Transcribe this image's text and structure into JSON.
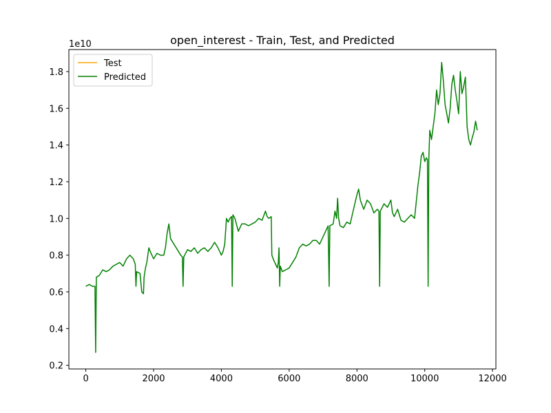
{
  "chart_data": {
    "type": "line",
    "title": "open_interest - Train, Test, and Predicted",
    "xlabel": "",
    "ylabel": "",
    "y_scale_label": "1e10",
    "xlim": [
      -500,
      12100
    ],
    "ylim": [
      0.18,
      1.92
    ],
    "x_ticks": [
      0,
      2000,
      4000,
      6000,
      8000,
      10000,
      12000
    ],
    "x_tick_labels": [
      "0",
      "2000",
      "4000",
      "6000",
      "8000",
      "10000",
      "12000"
    ],
    "y_ticks": [
      0.2,
      0.4,
      0.6,
      0.8,
      1.0,
      1.2,
      1.4,
      1.6,
      1.8
    ],
    "y_tick_labels": [
      "0.2",
      "0.4",
      "0.6",
      "0.8",
      "1.0",
      "1.2",
      "1.4",
      "1.6",
      "1.8"
    ],
    "grid": false,
    "legend": {
      "position": "upper-left",
      "entries": [
        {
          "name": "Test",
          "color": "#ffa500"
        },
        {
          "name": "Predicted",
          "color": "#008000"
        }
      ]
    },
    "series": [
      {
        "name": "Predicted",
        "color": "#008000",
        "points": [
          [
            0,
            0.63
          ],
          [
            100,
            0.64
          ],
          [
            200,
            0.63
          ],
          [
            270,
            0.63
          ],
          [
            290,
            0.27
          ],
          [
            310,
            0.68
          ],
          [
            400,
            0.69
          ],
          [
            500,
            0.72
          ],
          [
            600,
            0.71
          ],
          [
            700,
            0.72
          ],
          [
            800,
            0.74
          ],
          [
            900,
            0.75
          ],
          [
            1000,
            0.76
          ],
          [
            1100,
            0.74
          ],
          [
            1200,
            0.78
          ],
          [
            1300,
            0.8
          ],
          [
            1400,
            0.78
          ],
          [
            1460,
            0.75
          ],
          [
            1480,
            0.63
          ],
          [
            1500,
            0.71
          ],
          [
            1600,
            0.7
          ],
          [
            1650,
            0.6
          ],
          [
            1700,
            0.59
          ],
          [
            1720,
            0.68
          ],
          [
            1760,
            0.73
          ],
          [
            1800,
            0.76
          ],
          [
            1860,
            0.84
          ],
          [
            1900,
            0.82
          ],
          [
            2000,
            0.78
          ],
          [
            2100,
            0.81
          ],
          [
            2200,
            0.8
          ],
          [
            2300,
            0.8
          ],
          [
            2350,
            0.84
          ],
          [
            2400,
            0.92
          ],
          [
            2450,
            0.97
          ],
          [
            2500,
            0.89
          ],
          [
            2600,
            0.86
          ],
          [
            2700,
            0.83
          ],
          [
            2800,
            0.8
          ],
          [
            2850,
            0.79
          ],
          [
            2870,
            0.63
          ],
          [
            2890,
            0.79
          ],
          [
            3000,
            0.83
          ],
          [
            3100,
            0.82
          ],
          [
            3200,
            0.84
          ],
          [
            3300,
            0.81
          ],
          [
            3400,
            0.83
          ],
          [
            3500,
            0.84
          ],
          [
            3600,
            0.82
          ],
          [
            3700,
            0.84
          ],
          [
            3800,
            0.87
          ],
          [
            3900,
            0.84
          ],
          [
            4000,
            0.8
          ],
          [
            4050,
            0.82
          ],
          [
            4100,
            0.86
          ],
          [
            4150,
            1.0
          ],
          [
            4200,
            0.98
          ],
          [
            4250,
            1.0
          ],
          [
            4300,
            1.01
          ],
          [
            4320,
            0.63
          ],
          [
            4340,
            1.02
          ],
          [
            4400,
            1.0
          ],
          [
            4500,
            0.93
          ],
          [
            4600,
            0.97
          ],
          [
            4700,
            0.97
          ],
          [
            4800,
            0.96
          ],
          [
            4900,
            0.97
          ],
          [
            5000,
            0.98
          ],
          [
            5100,
            1.0
          ],
          [
            5200,
            0.99
          ],
          [
            5300,
            1.04
          ],
          [
            5350,
            1.01
          ],
          [
            5400,
            1.0
          ],
          [
            5470,
            1.01
          ],
          [
            5490,
            0.8
          ],
          [
            5550,
            0.77
          ],
          [
            5600,
            0.75
          ],
          [
            5650,
            0.73
          ],
          [
            5680,
            0.76
          ],
          [
            5700,
            0.84
          ],
          [
            5720,
            0.63
          ],
          [
            5740,
            0.74
          ],
          [
            5800,
            0.71
          ],
          [
            5900,
            0.72
          ],
          [
            6000,
            0.73
          ],
          [
            6100,
            0.76
          ],
          [
            6200,
            0.79
          ],
          [
            6300,
            0.84
          ],
          [
            6400,
            0.86
          ],
          [
            6500,
            0.85
          ],
          [
            6600,
            0.86
          ],
          [
            6700,
            0.88
          ],
          [
            6800,
            0.88
          ],
          [
            6900,
            0.86
          ],
          [
            7000,
            0.9
          ],
          [
            7100,
            0.94
          ],
          [
            7150,
            0.96
          ],
          [
            7180,
            0.63
          ],
          [
            7200,
            0.96
          ],
          [
            7300,
            0.97
          ],
          [
            7350,
            1.04
          ],
          [
            7400,
            1.0
          ],
          [
            7430,
            1.11
          ],
          [
            7460,
            1.0
          ],
          [
            7500,
            0.96
          ],
          [
            7600,
            0.95
          ],
          [
            7700,
            0.98
          ],
          [
            7800,
            0.97
          ],
          [
            7900,
            1.05
          ],
          [
            8000,
            1.13
          ],
          [
            8050,
            1.16
          ],
          [
            8100,
            1.1
          ],
          [
            8200,
            1.05
          ],
          [
            8300,
            1.1
          ],
          [
            8400,
            1.08
          ],
          [
            8500,
            1.03
          ],
          [
            8600,
            1.05
          ],
          [
            8650,
            1.04
          ],
          [
            8670,
            0.63
          ],
          [
            8690,
            1.04
          ],
          [
            8800,
            1.08
          ],
          [
            8900,
            1.06
          ],
          [
            9000,
            1.1
          ],
          [
            9050,
            1.03
          ],
          [
            9100,
            1.01
          ],
          [
            9200,
            1.05
          ],
          [
            9300,
            0.99
          ],
          [
            9400,
            0.98
          ],
          [
            9500,
            1.0
          ],
          [
            9600,
            1.02
          ],
          [
            9700,
            1.0
          ],
          [
            9800,
            1.18
          ],
          [
            9850,
            1.25
          ],
          [
            9900,
            1.34
          ],
          [
            9950,
            1.36
          ],
          [
            10000,
            1.31
          ],
          [
            10050,
            1.33
          ],
          [
            10080,
            1.32
          ],
          [
            10100,
            0.63
          ],
          [
            10120,
            1.32
          ],
          [
            10150,
            1.48
          ],
          [
            10200,
            1.43
          ],
          [
            10300,
            1.57
          ],
          [
            10350,
            1.7
          ],
          [
            10400,
            1.62
          ],
          [
            10450,
            1.68
          ],
          [
            10500,
            1.85
          ],
          [
            10550,
            1.75
          ],
          [
            10600,
            1.62
          ],
          [
            10650,
            1.57
          ],
          [
            10700,
            1.52
          ],
          [
            10750,
            1.6
          ],
          [
            10800,
            1.73
          ],
          [
            10850,
            1.78
          ],
          [
            10900,
            1.7
          ],
          [
            10950,
            1.64
          ],
          [
            11000,
            1.57
          ],
          [
            11050,
            1.8
          ],
          [
            11100,
            1.68
          ],
          [
            11150,
            1.72
          ],
          [
            11200,
            1.77
          ],
          [
            11250,
            1.5
          ],
          [
            11300,
            1.43
          ],
          [
            11350,
            1.4
          ],
          [
            11400,
            1.44
          ],
          [
            11450,
            1.47
          ],
          [
            11500,
            1.53
          ],
          [
            11550,
            1.48
          ]
        ]
      }
    ]
  }
}
